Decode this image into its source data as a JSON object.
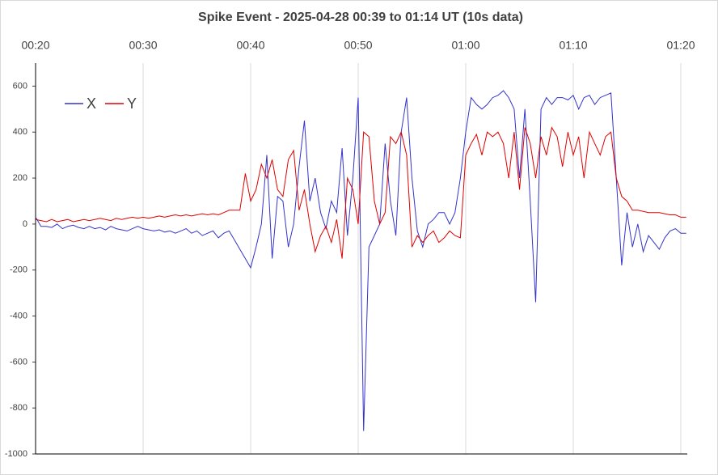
{
  "chart_data": {
    "type": "line",
    "title": "Spike Event - 2025-04-28  00:39 to 01:14 UT (10s data)",
    "x": [
      20,
      20.5,
      21,
      21.5,
      22,
      22.5,
      23,
      23.5,
      24,
      24.5,
      25,
      25.5,
      26,
      26.5,
      27,
      27.5,
      28,
      28.5,
      29,
      29.5,
      30,
      30.5,
      31,
      31.5,
      32,
      32.5,
      33,
      33.5,
      34,
      34.5,
      35,
      35.5,
      36,
      36.5,
      37,
      37.5,
      38,
      38.5,
      39,
      39.5,
      40,
      40.5,
      41,
      41.5,
      42,
      42.5,
      43,
      43.5,
      44,
      44.5,
      45,
      45.5,
      46,
      46.5,
      47,
      47.5,
      48,
      48.5,
      49,
      49.5,
      50,
      50.5,
      51,
      51.5,
      52,
      52.5,
      53,
      53.5,
      54,
      54.5,
      55,
      55.5,
      56,
      56.5,
      57,
      57.5,
      58,
      58.5,
      59,
      59.5,
      60,
      60.5,
      61,
      61.5,
      62,
      62.5,
      63,
      63.5,
      64,
      64.5,
      65,
      65.5,
      66,
      66.5,
      67,
      67.5,
      68,
      68.5,
      69,
      69.5,
      70,
      70.5,
      71,
      71.5,
      72,
      72.5,
      73,
      73.5,
      74,
      74.5,
      75,
      75.5,
      76,
      76.5,
      77,
      77.5,
      78,
      78.5,
      79,
      79.5,
      80,
      80.5
    ],
    "series": [
      {
        "name": "X",
        "color": "#3333cc",
        "values": [
          30,
          -10,
          -10,
          -15,
          0,
          -20,
          -10,
          -5,
          -15,
          -20,
          -10,
          -20,
          -15,
          -25,
          -10,
          -20,
          -25,
          -30,
          -20,
          -10,
          -20,
          -25,
          -30,
          -25,
          -35,
          -30,
          -40,
          -30,
          -20,
          -40,
          -30,
          -50,
          -40,
          -30,
          -60,
          -40,
          -30,
          -70,
          -110,
          -150,
          -190,
          -100,
          0,
          300,
          -150,
          120,
          100,
          -100,
          0,
          250,
          450,
          100,
          200,
          50,
          -20,
          100,
          50,
          330,
          -50,
          200,
          550,
          -900,
          -100,
          -50,
          0,
          350,
          100,
          -50,
          400,
          550,
          200,
          -30,
          -100,
          0,
          20,
          50,
          50,
          0,
          50,
          200,
          400,
          550,
          520,
          500,
          520,
          550,
          560,
          580,
          550,
          500,
          200,
          500,
          100,
          -340,
          500,
          550,
          520,
          550,
          550,
          540,
          560,
          500,
          550,
          560,
          520,
          550,
          560,
          570,
          200,
          -180,
          50,
          -100,
          0,
          -120,
          -50,
          -80,
          -110,
          -60,
          -30,
          -20,
          -40,
          -40
        ]
      },
      {
        "name": "Y",
        "color": "#e00000",
        "values": [
          20,
          15,
          10,
          20,
          10,
          15,
          20,
          10,
          15,
          20,
          15,
          20,
          25,
          20,
          15,
          25,
          20,
          25,
          30,
          25,
          30,
          25,
          30,
          35,
          30,
          35,
          40,
          35,
          40,
          35,
          40,
          45,
          40,
          45,
          40,
          50,
          60,
          60,
          60,
          220,
          100,
          150,
          260,
          200,
          280,
          150,
          120,
          280,
          320,
          60,
          150,
          0,
          -120,
          -50,
          -10,
          -80,
          20,
          -150,
          200,
          150,
          0,
          400,
          380,
          100,
          0,
          50,
          380,
          350,
          400,
          300,
          -100,
          -50,
          -80,
          -50,
          -30,
          -80,
          -60,
          -30,
          -50,
          -60,
          300,
          350,
          390,
          300,
          400,
          380,
          400,
          350,
          200,
          400,
          150,
          420,
          350,
          200,
          380,
          300,
          420,
          380,
          250,
          400,
          300,
          380,
          200,
          400,
          350,
          300,
          380,
          400,
          200,
          120,
          100,
          60,
          60,
          55,
          50,
          50,
          50,
          45,
          40,
          40,
          30,
          30
        ]
      }
    ],
    "xlim": [
      20,
      80.6
    ],
    "xticks": [
      {
        "value": 20,
        "label": "00:20"
      },
      {
        "value": 30,
        "label": "00:30"
      },
      {
        "value": 40,
        "label": "00:40"
      },
      {
        "value": 50,
        "label": "00:50"
      },
      {
        "value": 60,
        "label": "01:00"
      },
      {
        "value": 70,
        "label": "01:10"
      },
      {
        "value": 80,
        "label": "01:20"
      }
    ],
    "ylim": [
      -1000,
      700
    ],
    "yticks": [
      -1000,
      -800,
      -600,
      -400,
      -200,
      0,
      200,
      400,
      600
    ],
    "grid": true,
    "legend": "top-left"
  }
}
